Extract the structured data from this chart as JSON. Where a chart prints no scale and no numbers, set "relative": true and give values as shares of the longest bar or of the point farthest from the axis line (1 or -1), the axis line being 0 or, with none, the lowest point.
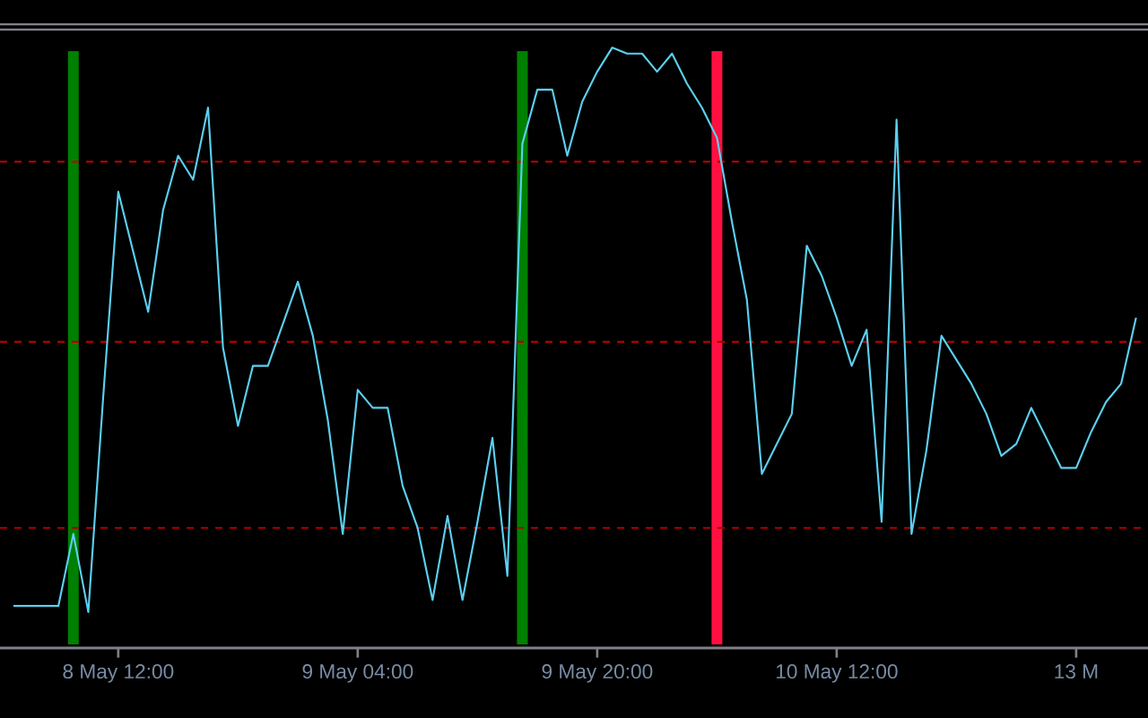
{
  "chart_data": {
    "type": "line",
    "relative": true,
    "color": "#5bd0f0",
    "categories": [
      null,
      null,
      null,
      null,
      null,
      null,
      null,
      "8 May 12:00",
      null,
      null,
      null,
      null,
      null,
      null,
      null,
      null,
      null,
      null,
      null,
      null,
      null,
      null,
      null,
      "9 May 04:00",
      null,
      null,
      null,
      null,
      null,
      null,
      null,
      null,
      null,
      null,
      null,
      null,
      null,
      null,
      null,
      "9 May 20:00",
      null,
      null,
      null,
      null,
      null,
      null,
      null,
      null,
      null,
      null,
      null,
      null,
      null,
      null,
      null,
      "10 May 12:00",
      null,
      null,
      null,
      null,
      null,
      null,
      null,
      null,
      null,
      null,
      null,
      null,
      null,
      null,
      null,
      "13 M",
      null,
      null,
      null,
      null
    ],
    "values": [
      0.07,
      0.07,
      0.07,
      0.07,
      0.19,
      0.06,
      0.42,
      0.76,
      0.66,
      0.56,
      0.73,
      0.82,
      0.78,
      0.9,
      0.5,
      0.37,
      0.47,
      0.47,
      0.54,
      0.61,
      0.52,
      0.38,
      0.19,
      0.43,
      0.4,
      0.4,
      0.27,
      0.2,
      0.08,
      0.22,
      0.08,
      0.21,
      0.35,
      0.12,
      0.84,
      0.93,
      0.93,
      0.82,
      0.91,
      0.96,
      1.0,
      0.99,
      0.99,
      0.96,
      0.99,
      0.94,
      0.9,
      0.85,
      0.71,
      0.58,
      0.29,
      0.34,
      0.39,
      0.67,
      0.62,
      0.55,
      0.47,
      0.53,
      0.21,
      0.88,
      0.19,
      0.33,
      0.52,
      0.48,
      0.44,
      0.39,
      0.32,
      0.34,
      0.4,
      0.35,
      0.3,
      0.3,
      0.36,
      0.41,
      0.44,
      0.55
    ],
    "ref_lines": [
      {
        "axis": "y",
        "value": 0.81,
        "color": "#b00000",
        "line_style": "dashed"
      },
      {
        "axis": "y",
        "value": 0.51,
        "color": "#b00000",
        "line_style": "dashed"
      },
      {
        "axis": "y",
        "value": 0.2,
        "color": "#b00000",
        "line_style": "dashed"
      }
    ]
  }
}
